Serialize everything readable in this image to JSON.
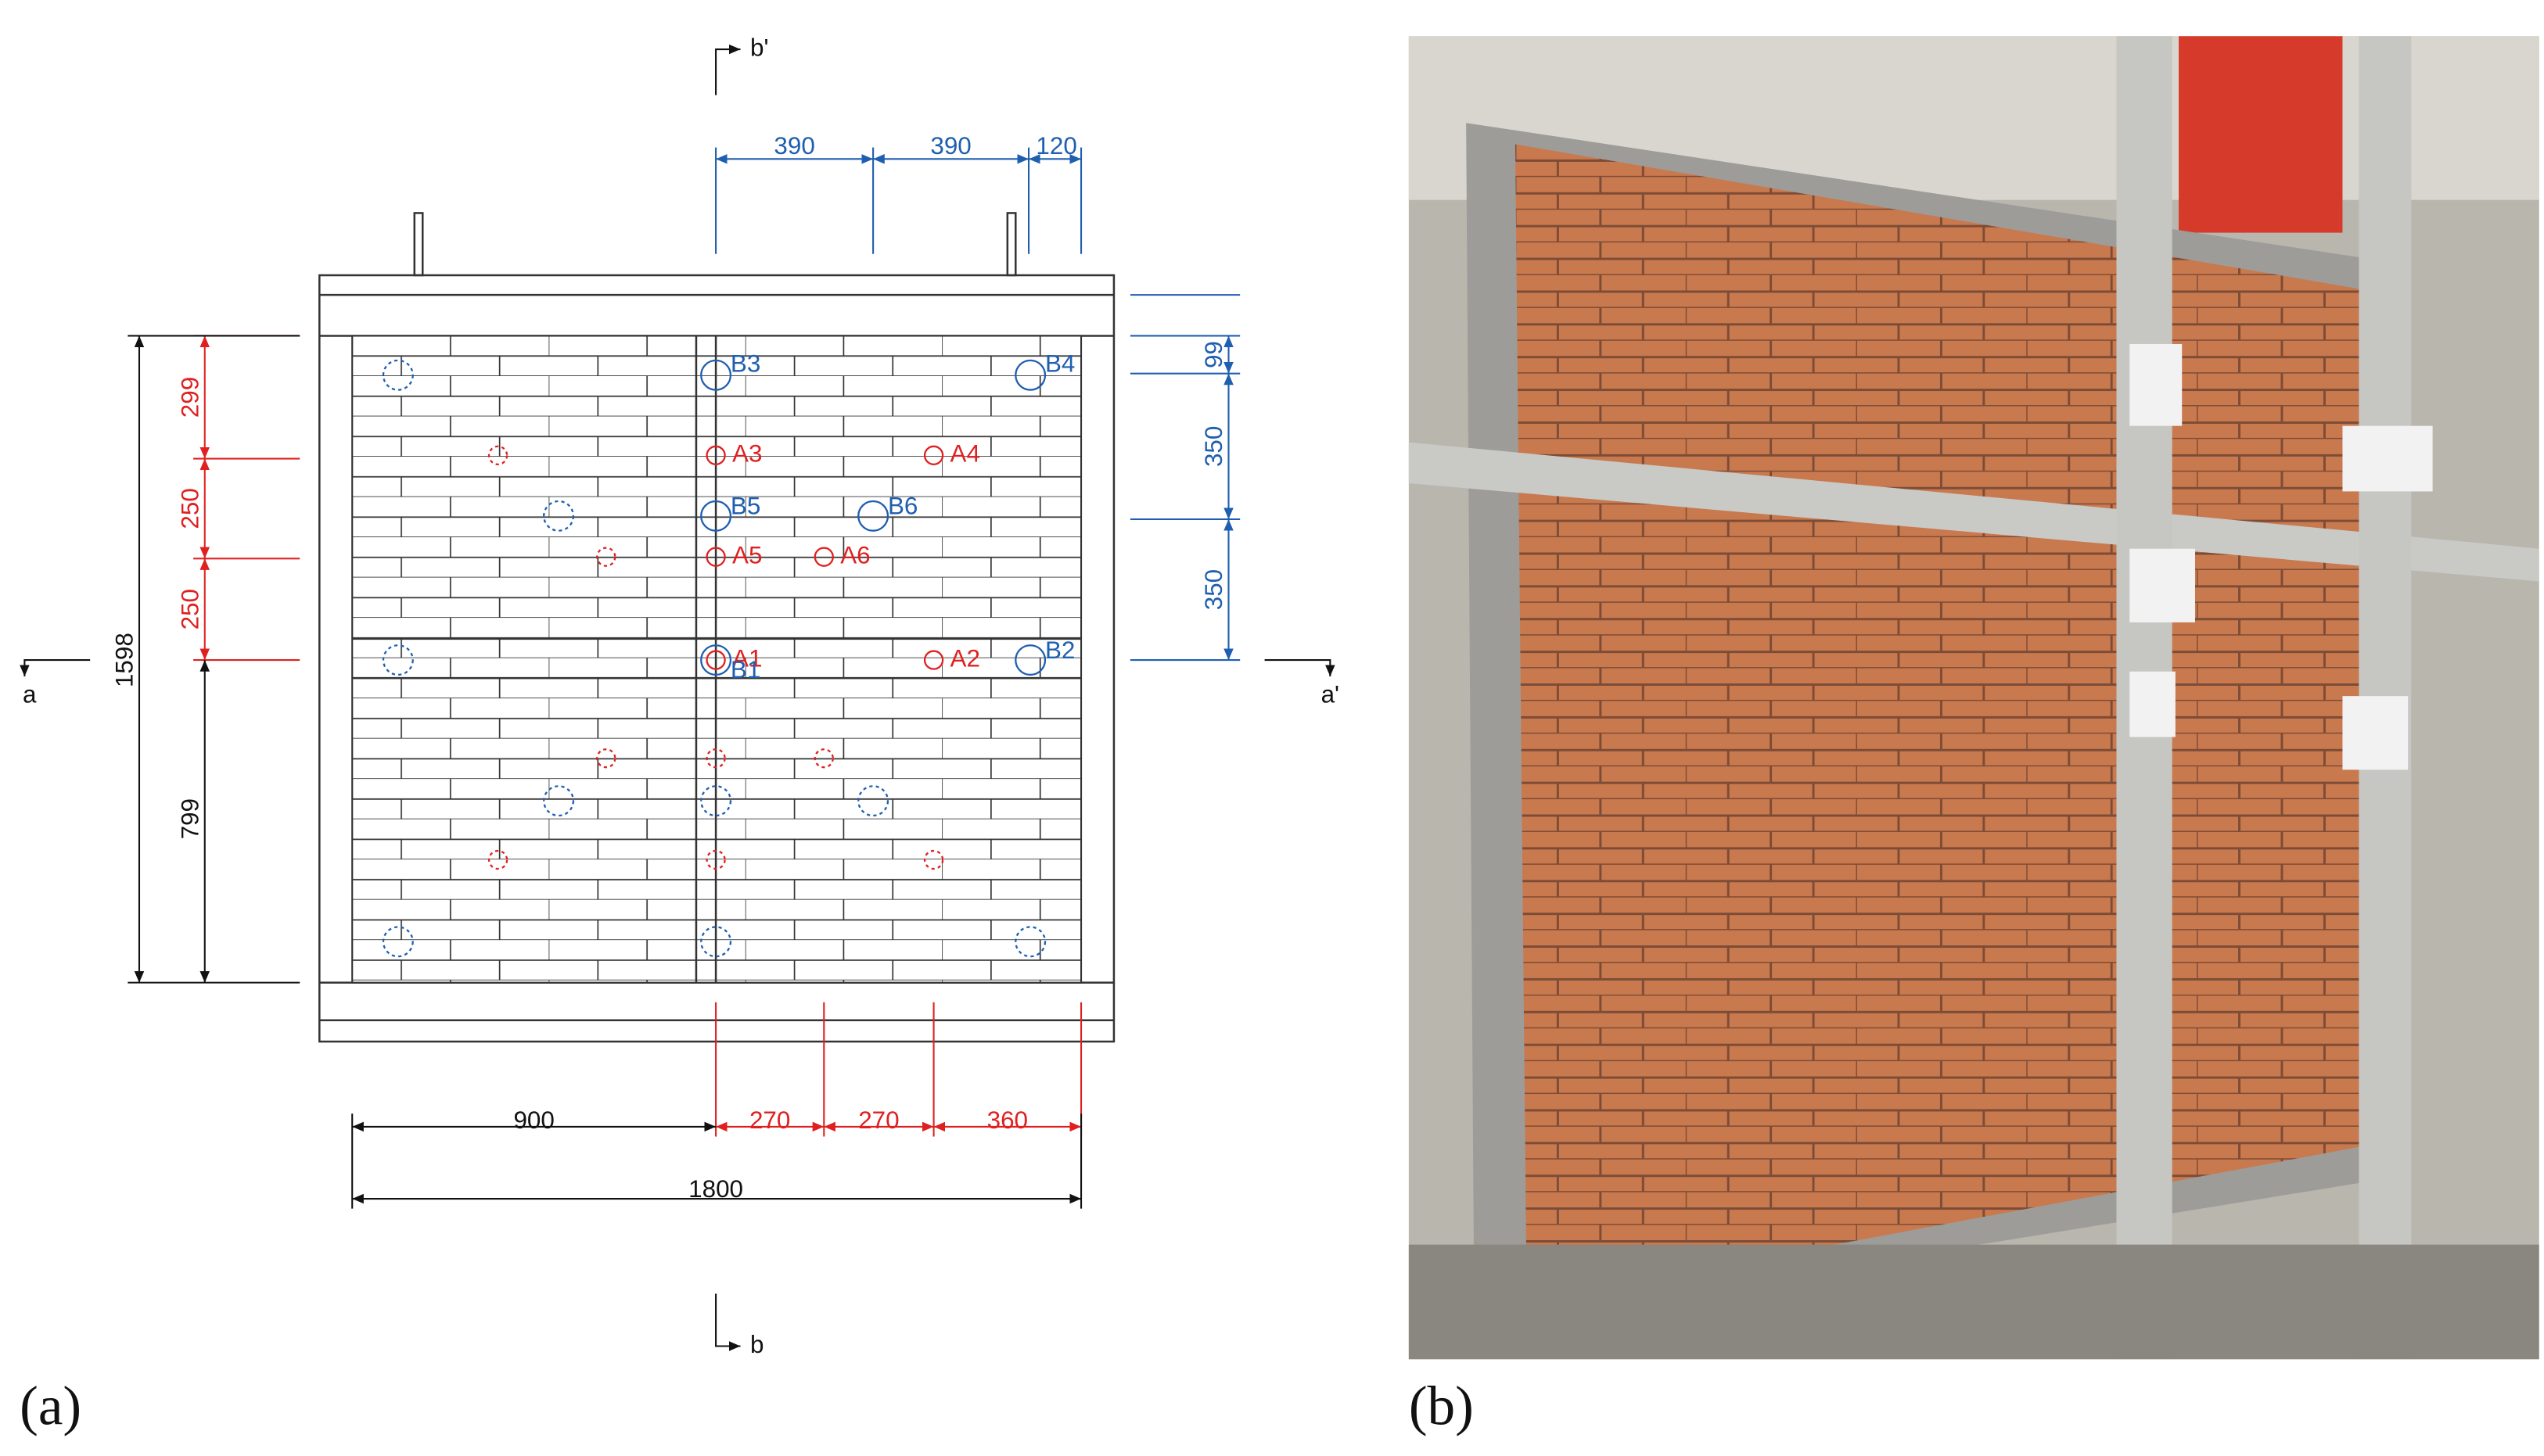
{
  "panels": [
    "(a)",
    "(b)"
  ],
  "drawing": {
    "sections": [
      "a",
      "a'",
      "b",
      "b'"
    ],
    "dims_top": [
      "390",
      "390",
      "120"
    ],
    "dims_right": [
      "99",
      "350",
      "350"
    ],
    "dims_left_red": [
      "299",
      "250",
      "250"
    ],
    "dims_left": [
      "1598",
      "799"
    ],
    "dims_bottom_red": [
      "270",
      "270",
      "360"
    ],
    "dims_bottom": [
      "900",
      "1800"
    ],
    "sensors_a": [
      "A1",
      "A2",
      "A3",
      "A4",
      "A5",
      "A6"
    ],
    "sensors_b": [
      "B1",
      "B2",
      "B3",
      "B4",
      "B5",
      "B6"
    ]
  }
}
